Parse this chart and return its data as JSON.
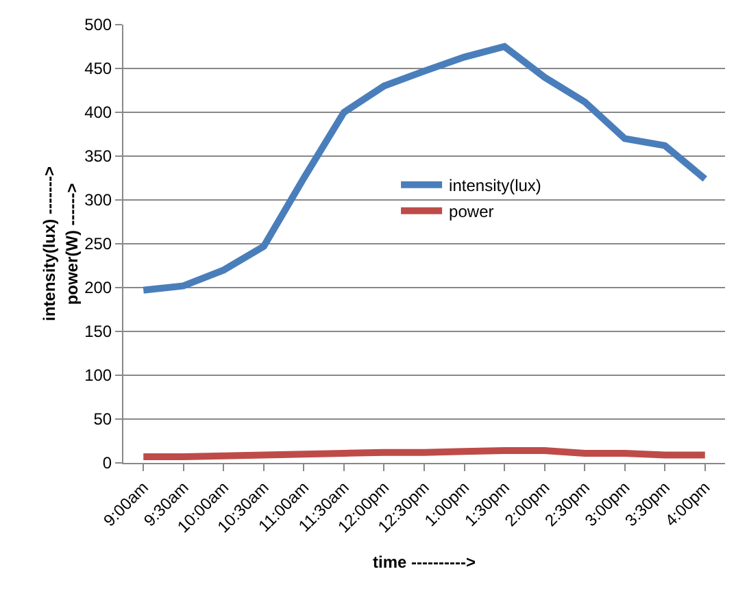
{
  "chart_data": {
    "type": "line",
    "categories": [
      "9:00am",
      "9:30am",
      "10:00am",
      "10:30am",
      "11:00am",
      "11:30am",
      "12:00pm",
      "12:30pm",
      "1:00pm",
      "1:30pm",
      "2:00pm",
      "2:30pm",
      "3:00pm",
      "3:30pm",
      "4:00pm"
    ],
    "series": [
      {
        "name": "intensity(lux)",
        "color": "#4a7ebb",
        "values": [
          197,
          202,
          220,
          247,
          325,
          400,
          430,
          447,
          463,
          475,
          440,
          412,
          370,
          362,
          324
        ]
      },
      {
        "name": "power",
        "color": "#be4b48",
        "values": [
          7,
          7,
          8,
          9,
          10,
          11,
          12,
          12,
          13,
          14,
          14,
          11,
          11,
          9,
          9
        ]
      }
    ],
    "xlabel": "time ---------->",
    "ylabel": "intensity(lux) ------->",
    "annotations": [
      "power(W) ------>"
    ],
    "ylim": [
      0,
      500
    ],
    "yticks": [
      0,
      50,
      100,
      150,
      200,
      250,
      300,
      350,
      400,
      450,
      500
    ],
    "grid": "y",
    "legend": "center",
    "marker": "none",
    "line_style": "solid"
  }
}
